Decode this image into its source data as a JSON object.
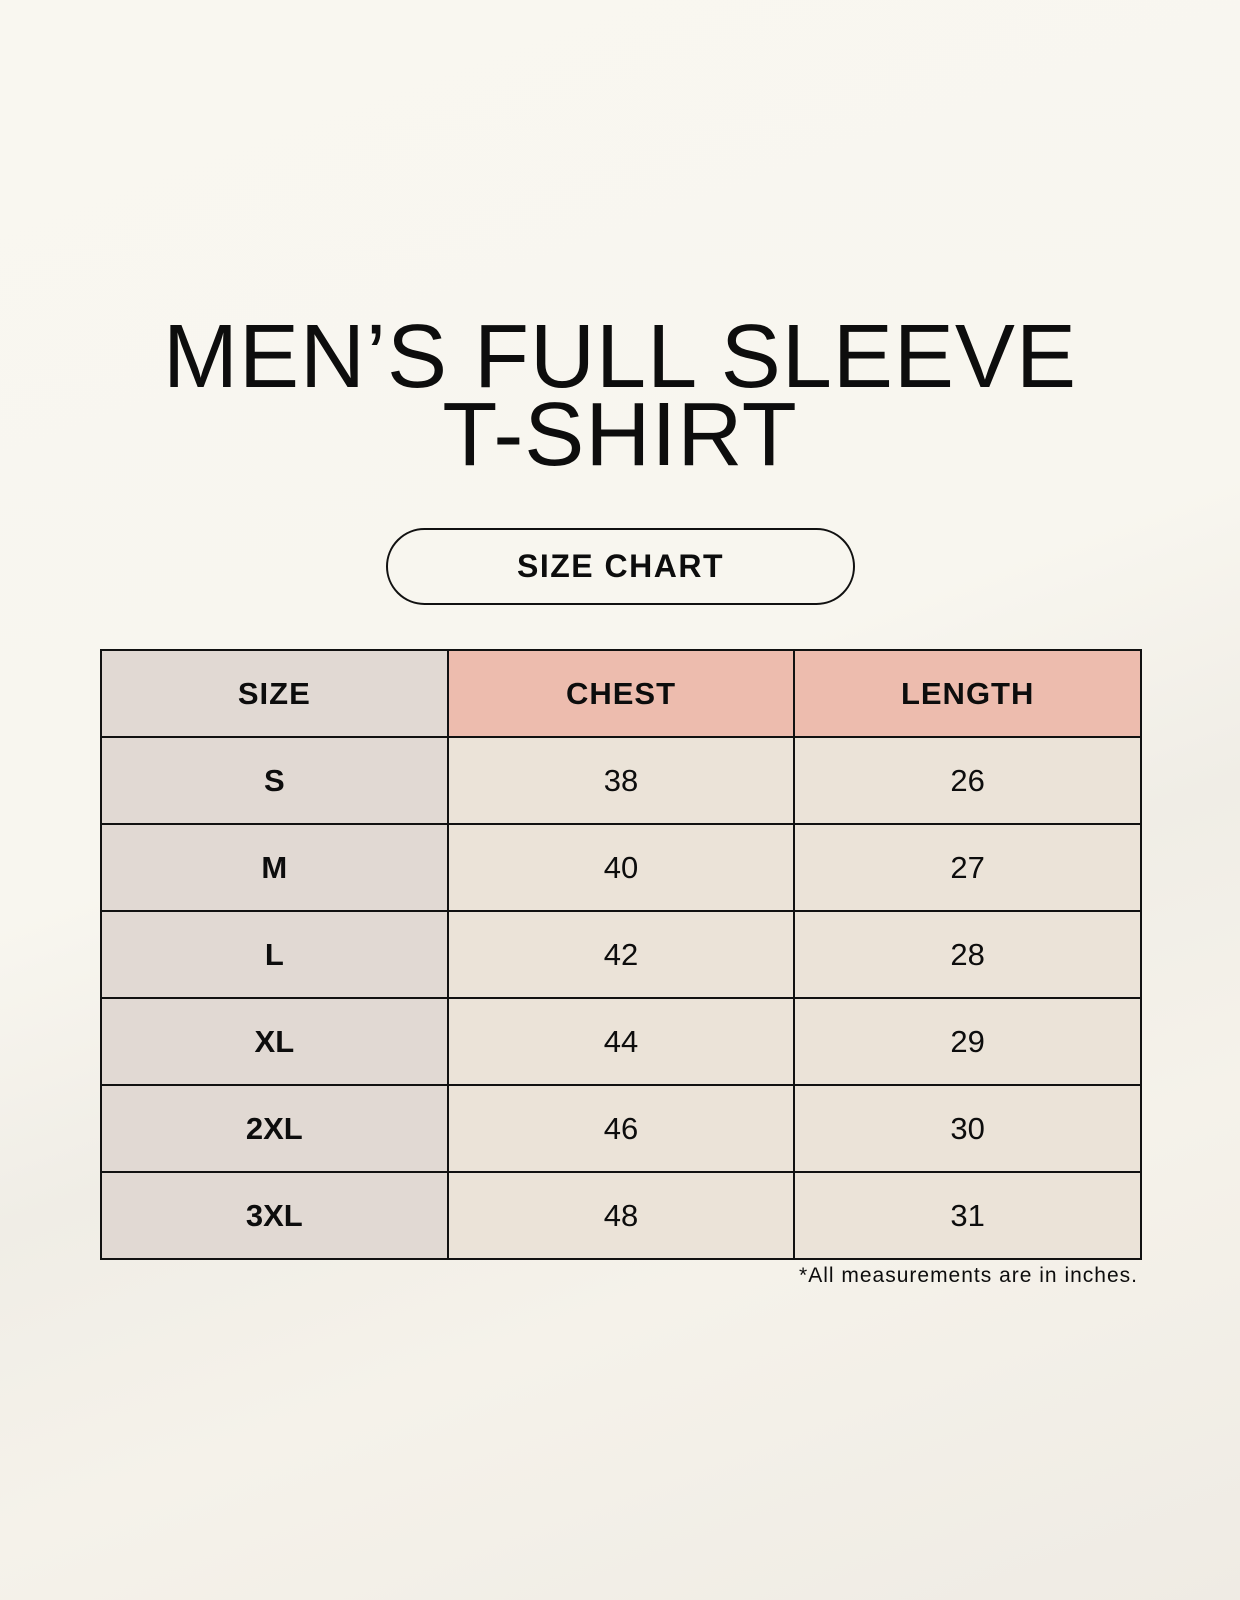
{
  "title_line1": "MEN’S FULL SLEEVE",
  "title_line2": "T-SHIRT",
  "badge": "SIZE CHART",
  "table": {
    "headers": [
      "SIZE",
      "CHEST",
      "LENGTH"
    ],
    "rows": [
      [
        "S",
        "38",
        "26"
      ],
      [
        "M",
        "40",
        "27"
      ],
      [
        "L",
        "42",
        "28"
      ],
      [
        "XL",
        "44",
        "29"
      ],
      [
        "2XL",
        "46",
        "30"
      ],
      [
        "3XL",
        "48",
        "31"
      ]
    ]
  },
  "footnote": "*All measurements are in inches.",
  "colors": {
    "size_column": "#e1d9d3",
    "header_accent": "#edbcae",
    "cells": "#ebe3d8"
  }
}
